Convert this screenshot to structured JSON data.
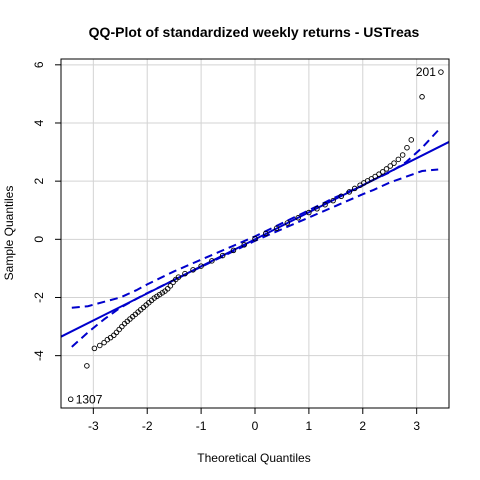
{
  "chart_data": {
    "type": "scatter",
    "title": "QQ-Plot of standardized weekly returns - USTreas",
    "xlabel": "Theoretical Quantiles",
    "ylabel": "Sample Quantiles",
    "xlim": [
      -3.6,
      3.6
    ],
    "ylim": [
      -5.8,
      6.2
    ],
    "xticks": [
      -3,
      -2,
      -1,
      0,
      1,
      2,
      3
    ],
    "yticks": [
      -4,
      -2,
      0,
      2,
      4,
      6
    ],
    "grid": true,
    "colors": {
      "points": "#000000",
      "reference_line": "#0000cc",
      "envelope": "#0000cc",
      "grid": "#d3d3d3"
    },
    "reference_line": {
      "intercept": 0.0,
      "slope": 0.93
    },
    "envelope": {
      "x": [
        -3.4,
        -3.1,
        -2.8,
        -2.5,
        -2.2,
        -2.0,
        -1.5,
        -1.0,
        0.0,
        1.0,
        1.5,
        2.0,
        2.2,
        2.5,
        2.8,
        3.1,
        3.4
      ],
      "upper": [
        -2.35,
        -2.3,
        -2.15,
        -2.0,
        -1.75,
        -1.55,
        -1.1,
        -0.7,
        0.1,
        1.0,
        1.45,
        1.85,
        2.05,
        2.3,
        2.65,
        3.15,
        3.75
      ],
      "lower": [
        -3.7,
        -3.2,
        -2.75,
        -2.35,
        -2.05,
        -1.85,
        -1.4,
        -0.95,
        -0.05,
        0.75,
        1.15,
        1.55,
        1.7,
        1.95,
        2.15,
        2.35,
        2.4
      ]
    },
    "points": {
      "x": [
        -3.42,
        -3.12,
        -2.98,
        -2.88,
        -2.8,
        -2.74,
        -2.68,
        -2.62,
        -2.57,
        -2.52,
        -2.47,
        -2.42,
        -2.37,
        -2.32,
        -2.27,
        -2.22,
        -2.17,
        -2.12,
        -2.07,
        -2.02,
        -1.97,
        -1.92,
        -1.87,
        -1.82,
        -1.77,
        -1.72,
        -1.67,
        -1.62,
        -1.57,
        -1.52,
        -1.47,
        -1.42,
        -1.3,
        -1.15,
        -1.0,
        -0.8,
        -0.6,
        -0.4,
        -0.2,
        0.0,
        0.2,
        0.4,
        0.6,
        0.8,
        1.0,
        1.15,
        1.3,
        1.45,
        1.6,
        1.75,
        1.85,
        1.95,
        2.02,
        2.09,
        2.16,
        2.23,
        2.3,
        2.37,
        2.44,
        2.51,
        2.58,
        2.66,
        2.74,
        2.82,
        2.9,
        3.1,
        3.45
      ],
      "y": [
        -5.5,
        -4.35,
        -3.75,
        -3.65,
        -3.55,
        -3.45,
        -3.38,
        -3.3,
        -3.2,
        -3.1,
        -3.0,
        -2.9,
        -2.82,
        -2.74,
        -2.66,
        -2.58,
        -2.5,
        -2.42,
        -2.34,
        -2.26,
        -2.18,
        -2.1,
        -2.02,
        -1.96,
        -1.9,
        -1.84,
        -1.78,
        -1.7,
        -1.6,
        -1.48,
        -1.38,
        -1.3,
        -1.18,
        -1.05,
        -0.92,
        -0.74,
        -0.56,
        -0.38,
        -0.19,
        0.02,
        0.2,
        0.38,
        0.56,
        0.74,
        0.92,
        1.05,
        1.19,
        1.33,
        1.48,
        1.63,
        1.75,
        1.86,
        1.94,
        2.01,
        2.08,
        2.16,
        2.24,
        2.32,
        2.42,
        2.52,
        2.62,
        2.75,
        2.9,
        3.15,
        3.42,
        4.9,
        5.75
      ]
    },
    "annotations": [
      {
        "text": "201",
        "x": 3.45,
        "y": 5.75,
        "anchor": "end"
      },
      {
        "text": "1307",
        "x": -3.42,
        "y": -5.5,
        "anchor": "start"
      }
    ]
  }
}
